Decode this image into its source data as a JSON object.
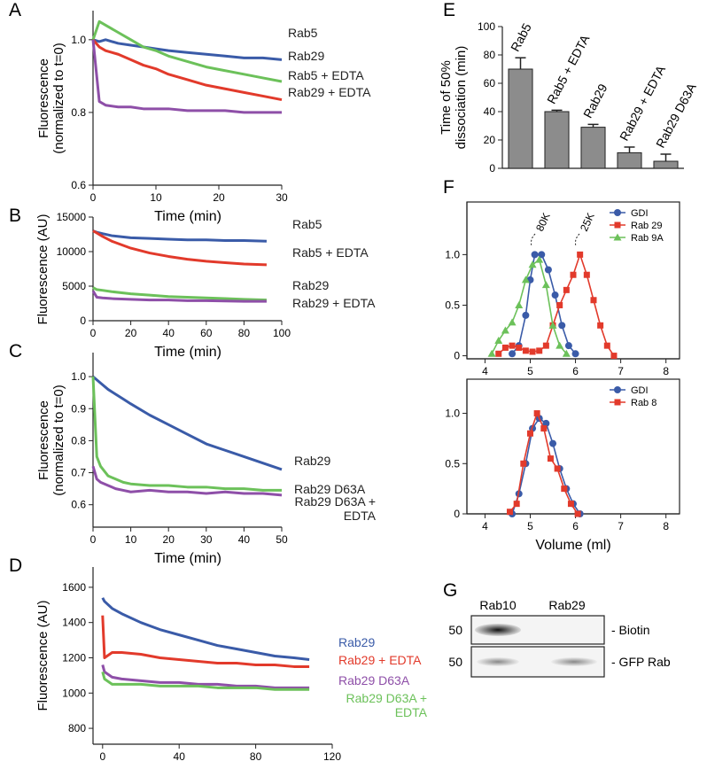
{
  "chart_data": [
    {
      "type": "line",
      "panel": "A",
      "ylabel": "Fluorescence (normalized to t=0)",
      "xlabel": "Time (min)",
      "x": [
        0,
        1,
        2,
        4,
        6,
        8,
        10,
        12,
        15,
        18,
        21,
        24,
        27,
        30
      ],
      "xlim": [
        0,
        30
      ],
      "xticks": [
        0,
        10,
        20,
        30
      ],
      "ylim": [
        0.6,
        1.08
      ],
      "yticks": [
        0.6,
        0.8,
        {
          "value": 1,
          "label": "1.0"
        }
      ],
      "labels_colored": false,
      "series": [
        {
          "name": "Rab5",
          "color": "#3a5ba8",
          "values": [
            1.0,
            0.995,
            1.0,
            0.99,
            0.985,
            0.98,
            0.975,
            0.97,
            0.965,
            0.96,
            0.955,
            0.95,
            0.95,
            0.945
          ]
        },
        {
          "name": "Rab29",
          "color": "#6cc15a",
          "values": [
            1.0,
            1.05,
            1.04,
            1.02,
            1.0,
            0.98,
            0.97,
            0.955,
            0.94,
            0.925,
            0.915,
            0.905,
            0.895,
            0.885
          ]
        },
        {
          "name": "Rab5 + EDTA",
          "color": "#e23a2b",
          "values": [
            1.0,
            0.98,
            0.97,
            0.96,
            0.945,
            0.93,
            0.92,
            0.905,
            0.89,
            0.875,
            0.865,
            0.855,
            0.845,
            0.835
          ]
        },
        {
          "name": "Rab29 + EDTA",
          "color": "#8e4fa8",
          "values": [
            1.0,
            0.83,
            0.82,
            0.815,
            0.815,
            0.81,
            0.81,
            0.81,
            0.805,
            0.805,
            0.805,
            0.8,
            0.8,
            0.8
          ]
        }
      ]
    },
    {
      "type": "line",
      "panel": "B",
      "ylabel": "Fluorescence (AU)",
      "xlabel": "Time (min)",
      "x": [
        0,
        2,
        5,
        10,
        20,
        30,
        40,
        50,
        60,
        70,
        80,
        92
      ],
      "xlim": [
        0,
        100
      ],
      "xticks": [
        0,
        20,
        40,
        60,
        80,
        100
      ],
      "ylim": [
        0,
        15000
      ],
      "yticks": [
        0,
        5000,
        10000,
        15000
      ],
      "labels_colored": false,
      "series": [
        {
          "name": "Rab5",
          "color": "#3a5ba8",
          "values": [
            13000,
            12800,
            12600,
            12300,
            12000,
            11900,
            11800,
            11700,
            11700,
            11600,
            11600,
            11500
          ]
        },
        {
          "name": "Rab5 + EDTA",
          "color": "#e23a2b",
          "values": [
            13000,
            12700,
            12200,
            11500,
            10500,
            9800,
            9300,
            8900,
            8600,
            8400,
            8200,
            8100
          ]
        },
        {
          "name": "Rab29",
          "color": "#6cc15a",
          "values": [
            4800,
            4500,
            4400,
            4200,
            3900,
            3700,
            3500,
            3400,
            3300,
            3200,
            3100,
            3000
          ]
        },
        {
          "name": "Rab29 + EDTA",
          "color": "#8e4fa8",
          "values": [
            4300,
            3400,
            3300,
            3200,
            3100,
            3000,
            3000,
            2900,
            2900,
            2850,
            2800,
            2800
          ]
        }
      ]
    },
    {
      "type": "line",
      "panel": "C",
      "ylabel": "Fluorescence (normalized to t=0)",
      "xlabel": "Time (min)",
      "x": [
        0,
        1,
        2,
        4,
        6,
        8,
        10,
        15,
        20,
        25,
        30,
        35,
        40,
        45,
        50
      ],
      "xlim": [
        0,
        50
      ],
      "xticks": [
        0,
        10,
        20,
        30,
        40,
        50
      ],
      "ylim": [
        0.53,
        1.075
      ],
      "yticks": [
        0.6,
        0.7,
        0.8,
        0.9,
        {
          "value": 1,
          "label": "1.0"
        }
      ],
      "labels_colored": false,
      "series": [
        {
          "name": "Rab29",
          "color": "#3a5ba8",
          "values": [
            1.0,
            0.99,
            0.98,
            0.96,
            0.945,
            0.93,
            0.915,
            0.88,
            0.85,
            0.82,
            0.79,
            0.77,
            0.75,
            0.73,
            0.71
          ]
        },
        {
          "name": "Rab29 D63A",
          "color": "#6cc15a",
          "values": [
            1.0,
            0.75,
            0.72,
            0.69,
            0.68,
            0.67,
            0.665,
            0.66,
            0.66,
            0.655,
            0.655,
            0.65,
            0.65,
            0.645,
            0.645
          ]
        },
        {
          "name": "Rab29 D63A + EDTA",
          "color": "#8e4fa8",
          "values": [
            0.72,
            0.68,
            0.67,
            0.66,
            0.65,
            0.645,
            0.64,
            0.645,
            0.64,
            0.64,
            0.635,
            0.64,
            0.635,
            0.635,
            0.63
          ]
        }
      ]
    },
    {
      "type": "line",
      "panel": "D",
      "ylabel": "Fluorescence (AU)",
      "xlabel": "Time (min)",
      "x": [
        0,
        1,
        5,
        10,
        20,
        30,
        40,
        50,
        60,
        70,
        80,
        90,
        100,
        108
      ],
      "xlim": [
        -5,
        120
      ],
      "xticks": [
        0,
        40,
        80,
        120
      ],
      "ylim": [
        710,
        1715
      ],
      "yticks": [
        800,
        1000,
        1200,
        1400,
        1600
      ],
      "labels_colored": true,
      "series": [
        {
          "name": "Rab29",
          "color": "#3a5ba8",
          "values": [
            1540,
            1520,
            1480,
            1450,
            1400,
            1360,
            1330,
            1300,
            1270,
            1250,
            1230,
            1210,
            1200,
            1190
          ]
        },
        {
          "name": "Rab29 + EDTA",
          "color": "#e23a2b",
          "values": [
            1440,
            1200,
            1230,
            1230,
            1220,
            1200,
            1190,
            1180,
            1170,
            1170,
            1160,
            1160,
            1150,
            1150
          ]
        },
        {
          "name": "Rab29 D63A",
          "color": "#8e4fa8",
          "values": [
            1160,
            1120,
            1090,
            1080,
            1070,
            1060,
            1060,
            1050,
            1050,
            1040,
            1040,
            1030,
            1030,
            1030
          ]
        },
        {
          "name": "Rab29 D63A + EDTA",
          "color": "#6cc15a",
          "values": [
            1120,
            1080,
            1050,
            1050,
            1050,
            1040,
            1040,
            1040,
            1030,
            1030,
            1030,
            1020,
            1020,
            1020
          ]
        }
      ]
    },
    {
      "type": "bar",
      "panel": "E",
      "ylabel": "Time of 50% dissociation (min)",
      "categories": [
        "Rab5",
        "Rab5 + EDTA",
        "Rab29",
        "Rab29 + EDTA",
        "Rab29 D63A"
      ],
      "values": [
        70,
        40,
        29,
        11,
        5
      ],
      "errors": [
        8,
        1,
        2,
        4,
        5
      ],
      "color": "#8c8c8c",
      "ylim": [
        0,
        100
      ],
      "yticks": [
        0,
        20,
        40,
        60,
        80,
        100
      ]
    },
    {
      "type": "line",
      "panel": "F",
      "annotations": [
        "80K",
        "25K"
      ],
      "xlim": [
        3.6,
        8.3
      ],
      "xticks": [
        4,
        5,
        6,
        7,
        8
      ],
      "ylim": [
        -0.03,
        1.52
      ],
      "yticks": [
        0,
        0.5,
        {
          "value": 1,
          "label": "1.0"
        }
      ],
      "legend": "top-right",
      "series": [
        {
          "name": "GDI",
          "color": "#3a5ba8",
          "marker": "circle",
          "x": [
            4.6,
            4.75,
            4.9,
            5.0,
            5.1,
            5.25,
            5.4,
            5.55,
            5.7,
            5.85,
            6.0
          ],
          "values": [
            0.02,
            0.1,
            0.4,
            0.75,
            1.0,
            1.0,
            0.85,
            0.6,
            0.3,
            0.1,
            0.02
          ]
        },
        {
          "name": "Rab 29",
          "color": "#e23a2b",
          "marker": "square",
          "x": [
            4.3,
            4.45,
            4.6,
            4.75,
            4.9,
            5.05,
            5.2,
            5.35,
            5.5,
            5.65,
            5.8,
            5.95,
            6.1,
            6.25,
            6.4,
            6.55,
            6.7,
            6.85
          ],
          "values": [
            0.02,
            0.08,
            0.1,
            0.08,
            0.05,
            0.04,
            0.05,
            0.1,
            0.3,
            0.5,
            0.65,
            0.8,
            1.0,
            0.8,
            0.55,
            0.3,
            0.1,
            0.0
          ]
        },
        {
          "name": "Rab 9A",
          "color": "#6cc15a",
          "marker": "triangle",
          "x": [
            4.15,
            4.3,
            4.45,
            4.6,
            4.75,
            4.9,
            5.05,
            5.2,
            5.35,
            5.5,
            5.65,
            5.8
          ],
          "values": [
            0.02,
            0.15,
            0.25,
            0.33,
            0.5,
            0.75,
            0.9,
            0.95,
            0.7,
            0.3,
            0.1,
            0.02
          ]
        }
      ]
    },
    {
      "type": "line",
      "xlabel": "Volume (ml)",
      "xlim": [
        3.6,
        8.3
      ],
      "xticks": [
        4,
        5,
        6,
        7,
        8
      ],
      "ylim": [
        0,
        1.34
      ],
      "yticks": [
        0,
        0.5,
        {
          "value": 1,
          "label": "1.0"
        }
      ],
      "legend": "top-right",
      "series": [
        {
          "name": "GDI",
          "color": "#3a5ba8",
          "marker": "circle",
          "x": [
            4.6,
            4.75,
            4.9,
            5.05,
            5.2,
            5.35,
            5.5,
            5.65,
            5.8,
            5.95,
            6.1
          ],
          "values": [
            0.0,
            0.2,
            0.5,
            0.85,
            0.95,
            0.9,
            0.7,
            0.45,
            0.25,
            0.1,
            0.0
          ]
        },
        {
          "name": "Rab 8",
          "color": "#e23a2b",
          "marker": "square",
          "x": [
            4.55,
            4.7,
            4.85,
            5.0,
            5.15,
            5.3,
            5.45,
            5.6,
            5.75,
            5.9,
            6.05
          ],
          "values": [
            0.02,
            0.1,
            0.5,
            0.8,
            1.0,
            0.85,
            0.55,
            0.45,
            0.25,
            0.1,
            0.0
          ]
        }
      ]
    }
  ],
  "blot": {
    "panel": "G",
    "lanes": [
      "Rab10",
      "Rab29"
    ],
    "rows": [
      {
        "size": "50",
        "label": "- Biotin"
      },
      {
        "size": "50",
        "label": "- GFP Rab"
      }
    ]
  }
}
